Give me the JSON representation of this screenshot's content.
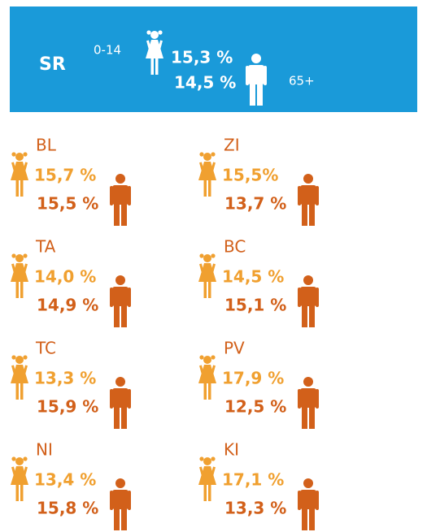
{
  "header": {
    "label": "SR",
    "child_label": "0-14",
    "child": "15,3 %",
    "senior": "14,5 %",
    "senior_label": "65+"
  },
  "regions": [
    {
      "name": "BL",
      "child": "15,7 %",
      "senior": "15,5 %"
    },
    {
      "name": "ZI",
      "child": "15,5%",
      "senior": "13,7 %"
    },
    {
      "name": "TA",
      "child": "14,0 %",
      "senior": "14,9 %"
    },
    {
      "name": "BC",
      "child": "14,5 %",
      "senior": "15,1 %"
    },
    {
      "name": "TC",
      "child": "13,3 %",
      "senior": "15,9 %"
    },
    {
      "name": "PV",
      "child": "17,9 %",
      "senior": "12,5 %"
    },
    {
      "name": "NI",
      "child": "13,4 %",
      "senior": "15,8 %"
    },
    {
      "name": "KI",
      "child": "17,1 %",
      "senior": "13,3 %"
    }
  ]
}
